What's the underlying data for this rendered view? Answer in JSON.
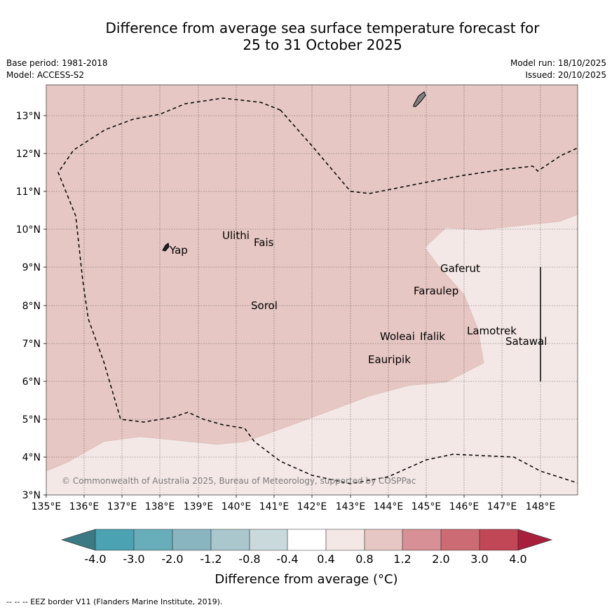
{
  "header": {
    "title_line1": "Difference from average sea surface temperature forecast for",
    "title_line2": "25 to 31 October 2025",
    "base_period": "Base period: 1981-2018",
    "model": "Model: ACCESS-S2",
    "model_run": "Model run: 18/10/2025",
    "issued": "Issued: 20/10/2025"
  },
  "map": {
    "lon_ticks": [
      "135°E",
      "136°E",
      "137°E",
      "138°E",
      "139°E",
      "140°E",
      "141°E",
      "142°E",
      "143°E",
      "144°E",
      "145°E",
      "146°E",
      "147°E",
      "148°E"
    ],
    "lat_ticks": [
      "3°N",
      "4°N",
      "5°N",
      "6°N",
      "7°N",
      "8°N",
      "9°N",
      "10°N",
      "11°N",
      "12°N",
      "13°N"
    ],
    "places": [
      {
        "name": "Yap",
        "lon": 138.25,
        "lat": 9.45
      },
      {
        "name": "Ulithi",
        "lon": 139.65,
        "lat": 9.8
      },
      {
        "name": "Fais",
        "lon": 140.45,
        "lat": 9.6
      },
      {
        "name": "Gaferut",
        "lon": 145.4,
        "lat": 8.9
      },
      {
        "name": "Faraulep",
        "lon": 144.65,
        "lat": 8.3
      },
      {
        "name": "Sorol",
        "lon": 140.35,
        "lat": 7.95
      },
      {
        "name": "Woleai",
        "lon": 143.7,
        "lat": 7.1
      },
      {
        "name": "Ifalik",
        "lon": 144.75,
        "lat": 7.1
      },
      {
        "name": "Lamotrek",
        "lon": 146.05,
        "lat": 7.25
      },
      {
        "name": "Satawal",
        "lon": 147.05,
        "lat": 6.95
      },
      {
        "name": "Eauripik",
        "lon": 143.3,
        "lat": 6.5
      }
    ],
    "copyright": "© Commonwealth of Australia 2025, Bureau of Meteorology, supported by COSPPac",
    "colors": {
      "anomaly_0_8_to_1_2": "#e6c7c3",
      "anomaly_0_4_to_0_8": "#f4e8e6",
      "land": "#808080",
      "eez": "#000000"
    }
  },
  "colorbar": {
    "ticks": [
      "-4.0",
      "-3.0",
      "-2.0",
      "-1.2",
      "-0.8",
      "-0.4",
      "0.4",
      "0.8",
      "1.2",
      "2.0",
      "3.0",
      "4.0"
    ],
    "colors": [
      "#3c7a83",
      "#4aa2b2",
      "#68adba",
      "#88b5c0",
      "#a9c7cd",
      "#c9d9dc",
      "#ffffff",
      "#f4e8e6",
      "#e6c7c3",
      "#d69096",
      "#cd6b74",
      "#c14757",
      "#a81f3b"
    ],
    "label": "Difference from average (°C)"
  },
  "footnote": "-- -- -- EEZ border V11 (Flanders Marine Institute, 2019)."
}
